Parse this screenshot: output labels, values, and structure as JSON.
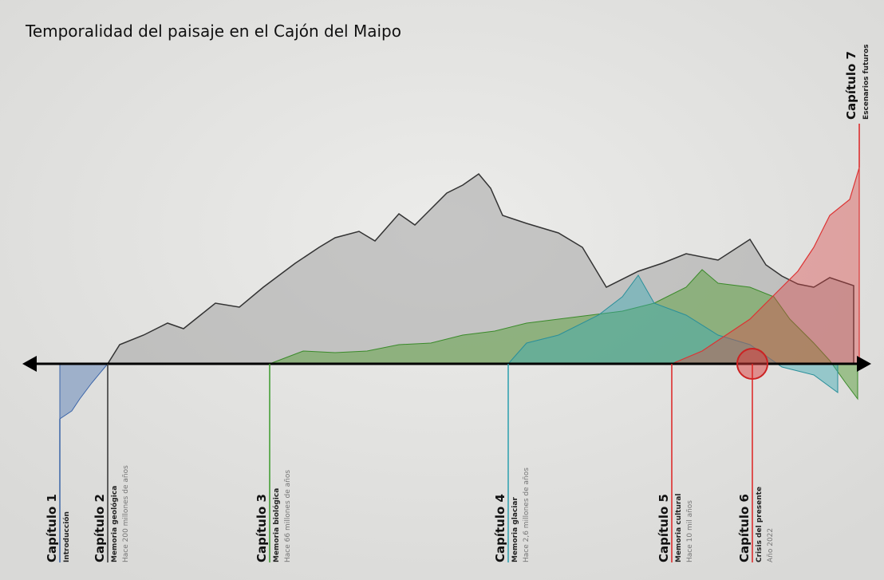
{
  "header": {
    "title": "Temporalidad del paisaje en el Cajón del Maipo"
  },
  "chapters": [
    {
      "title": "Capítulo 1",
      "subtitle": "Introducción"
    },
    {
      "title": "Capítulo 2",
      "subtitle": "Memoria geológica",
      "date": "Hace 200 millones de años"
    },
    {
      "title": "Capítulo 3",
      "subtitle": "Memoria biológica",
      "date": "Hace 66 millones de años"
    },
    {
      "title": "Capítulo 4",
      "subtitle": "Memoria glaciar",
      "date": "Hace 2,6 millones de años"
    },
    {
      "title": "Capítulo 5",
      "subtitle": "Memoria cultural",
      "date": "Hace 10 mil años"
    },
    {
      "title": "Capítulo 6",
      "subtitle": "Crisis del presente",
      "date": "Año 2022"
    },
    {
      "title": "Capítulo 7",
      "subtitle": "Escenarios futuros"
    }
  ]
}
